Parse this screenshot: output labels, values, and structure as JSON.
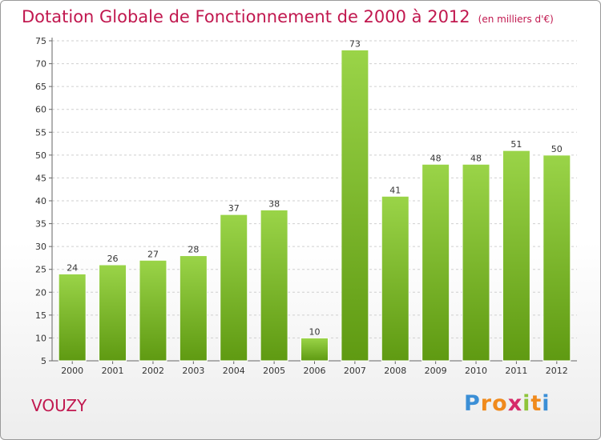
{
  "chart_data": {
    "type": "bar",
    "title": "Dotation Globale de Fonctionnement de 2000 à 2012",
    "subtitle": "(en milliers d'€)",
    "categories": [
      "2000",
      "2001",
      "2002",
      "2003",
      "2004",
      "2005",
      "2006",
      "2007",
      "2008",
      "2009",
      "2010",
      "2011",
      "2012"
    ],
    "values": [
      24,
      26,
      27,
      28,
      37,
      38,
      10,
      73,
      41,
      48,
      48,
      51,
      50
    ],
    "ylim": [
      5,
      75
    ],
    "yticks": [
      5,
      10,
      15,
      20,
      25,
      30,
      35,
      40,
      45,
      50,
      55,
      60,
      65,
      70,
      75
    ],
    "grid": "horizontal dashed",
    "bar_color_light": "#9ad448",
    "bar_color_dark": "#5f9a12"
  },
  "footer": {
    "city": "VOUZY",
    "logo_letters": [
      "P",
      "r",
      "o",
      "x",
      "i",
      "t",
      "i"
    ],
    "logo_colors": [
      "#3b8fd6",
      "#f08a1c",
      "#f08a1c",
      "#d62b6a",
      "#8ec43a",
      "#f08a1c",
      "#3b8fd6"
    ]
  }
}
